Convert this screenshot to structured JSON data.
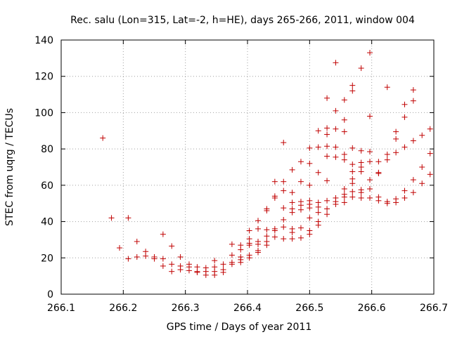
{
  "chart_data": {
    "type": "scatter",
    "title": "Rec. salu (Lon=315, Lat=-2, h=HE), days 265-266, 2011, window 004",
    "xlabel": "GPS time / Days of year 2011",
    "ylabel": "STEC from uqrg / TECUs",
    "xlim": [
      266.1,
      266.7
    ],
    "ylim": [
      0,
      140
    ],
    "xticks": [
      "266.1",
      "266.2",
      "266.3",
      "266.4",
      "266.5",
      "266.6",
      "266.7"
    ],
    "yticks": [
      "0",
      "20",
      "40",
      "60",
      "80",
      "100",
      "120",
      "140"
    ],
    "grid": true,
    "marker": "+",
    "color": "#c00000",
    "series": [
      {
        "name": "STEC",
        "points": [
          [
            266.167,
            86
          ],
          [
            266.181,
            42
          ],
          [
            266.194,
            25.5
          ],
          [
            266.208,
            42
          ],
          [
            266.208,
            19.5
          ],
          [
            266.222,
            29
          ],
          [
            266.222,
            20.5
          ],
          [
            266.236,
            23.5
          ],
          [
            266.236,
            21
          ],
          [
            266.25,
            20.5
          ],
          [
            266.25,
            19.5
          ],
          [
            266.264,
            33
          ],
          [
            266.264,
            19.5
          ],
          [
            266.264,
            15.5
          ],
          [
            266.278,
            26.5
          ],
          [
            266.278,
            16.5
          ],
          [
            266.278,
            12.5
          ],
          [
            266.292,
            20.5
          ],
          [
            266.292,
            15.5
          ],
          [
            266.292,
            13.5
          ],
          [
            266.306,
            16.5
          ],
          [
            266.306,
            15
          ],
          [
            266.306,
            13
          ],
          [
            266.319,
            15
          ],
          [
            266.319,
            12.5
          ],
          [
            266.319,
            12
          ],
          [
            266.333,
            14.5
          ],
          [
            266.333,
            12.5
          ],
          [
            266.333,
            10.5
          ],
          [
            266.347,
            18.5
          ],
          [
            266.347,
            15
          ],
          [
            266.347,
            12.5
          ],
          [
            266.347,
            10.5
          ],
          [
            266.361,
            16.5
          ],
          [
            266.361,
            13.5
          ],
          [
            266.361,
            12
          ],
          [
            266.375,
            27.5
          ],
          [
            266.375,
            21.5
          ],
          [
            266.375,
            17.5
          ],
          [
            266.375,
            16.5
          ],
          [
            266.389,
            27
          ],
          [
            266.389,
            24.5
          ],
          [
            266.389,
            20.5
          ],
          [
            266.389,
            19
          ],
          [
            266.389,
            17.5
          ],
          [
            266.403,
            35
          ],
          [
            266.403,
            30.5
          ],
          [
            266.403,
            28
          ],
          [
            266.403,
            27
          ],
          [
            266.403,
            21.5
          ],
          [
            266.403,
            20
          ],
          [
            266.417,
            40.5
          ],
          [
            266.417,
            36
          ],
          [
            266.417,
            29
          ],
          [
            266.417,
            27.5
          ],
          [
            266.417,
            24
          ],
          [
            266.417,
            23
          ],
          [
            266.431,
            47
          ],
          [
            266.431,
            46
          ],
          [
            266.431,
            35.5
          ],
          [
            266.431,
            32
          ],
          [
            266.431,
            29
          ],
          [
            266.431,
            27
          ],
          [
            266.444,
            62
          ],
          [
            266.444,
            54
          ],
          [
            266.444,
            53
          ],
          [
            266.444,
            36
          ],
          [
            266.444,
            35
          ],
          [
            266.444,
            31.5
          ],
          [
            266.458,
            83.5
          ],
          [
            266.458,
            62
          ],
          [
            266.458,
            57
          ],
          [
            266.458,
            47.5
          ],
          [
            266.458,
            41
          ],
          [
            266.458,
            37
          ],
          [
            266.458,
            30.5
          ],
          [
            266.472,
            68.5
          ],
          [
            266.472,
            56
          ],
          [
            266.472,
            50.5
          ],
          [
            266.472,
            47
          ],
          [
            266.472,
            45
          ],
          [
            266.472,
            36
          ],
          [
            266.472,
            34
          ],
          [
            266.472,
            30.5
          ],
          [
            266.486,
            73
          ],
          [
            266.486,
            62
          ],
          [
            266.486,
            51
          ],
          [
            266.486,
            49
          ],
          [
            266.486,
            46.5
          ],
          [
            266.486,
            36.5
          ],
          [
            266.486,
            31
          ],
          [
            266.5,
            80.5
          ],
          [
            266.5,
            72
          ],
          [
            266.5,
            60
          ],
          [
            266.5,
            51.5
          ],
          [
            266.5,
            49.5
          ],
          [
            266.5,
            47.5
          ],
          [
            266.5,
            42
          ],
          [
            266.5,
            35
          ],
          [
            266.5,
            33
          ],
          [
            266.514,
            90
          ],
          [
            266.514,
            81
          ],
          [
            266.514,
            67
          ],
          [
            266.514,
            50.5
          ],
          [
            266.514,
            48
          ],
          [
            266.514,
            45
          ],
          [
            266.514,
            40
          ],
          [
            266.514,
            38
          ],
          [
            266.528,
            108
          ],
          [
            266.528,
            91.5
          ],
          [
            266.528,
            88
          ],
          [
            266.528,
            81.5
          ],
          [
            266.528,
            76
          ],
          [
            266.528,
            62.5
          ],
          [
            266.528,
            51.5
          ],
          [
            266.528,
            47
          ],
          [
            266.528,
            44
          ],
          [
            266.542,
            127.5
          ],
          [
            266.542,
            101
          ],
          [
            266.542,
            91
          ],
          [
            266.542,
            81
          ],
          [
            266.542,
            75.5
          ],
          [
            266.542,
            53
          ],
          [
            266.542,
            51
          ],
          [
            266.542,
            49.5
          ],
          [
            266.556,
            107
          ],
          [
            266.556,
            96
          ],
          [
            266.556,
            89.5
          ],
          [
            266.556,
            77
          ],
          [
            266.556,
            74
          ],
          [
            266.556,
            58
          ],
          [
            266.556,
            55
          ],
          [
            266.556,
            53.5
          ],
          [
            266.556,
            50.5
          ],
          [
            266.569,
            115
          ],
          [
            266.569,
            112
          ],
          [
            266.569,
            80.5
          ],
          [
            266.569,
            71.5
          ],
          [
            266.569,
            67.5
          ],
          [
            266.569,
            63.5
          ],
          [
            266.569,
            61
          ],
          [
            266.569,
            56.5
          ],
          [
            266.569,
            53.5
          ],
          [
            266.583,
            124.5
          ],
          [
            266.583,
            79
          ],
          [
            266.583,
            72.5
          ],
          [
            266.583,
            70
          ],
          [
            266.583,
            67.5
          ],
          [
            266.583,
            57.5
          ],
          [
            266.583,
            56
          ],
          [
            266.583,
            53
          ],
          [
            266.597,
            133
          ],
          [
            266.597,
            98
          ],
          [
            266.597,
            78.5
          ],
          [
            266.597,
            73
          ],
          [
            266.597,
            63
          ],
          [
            266.597,
            58
          ],
          [
            266.597,
            53
          ],
          [
            266.611,
            73
          ],
          [
            266.611,
            67
          ],
          [
            266.611,
            66.5
          ],
          [
            266.611,
            53.5
          ],
          [
            266.611,
            51.5
          ],
          [
            266.625,
            114
          ],
          [
            266.625,
            77
          ],
          [
            266.625,
            74
          ],
          [
            266.625,
            51
          ],
          [
            266.625,
            50
          ],
          [
            266.639,
            89.5
          ],
          [
            266.639,
            85.5
          ],
          [
            266.639,
            78
          ],
          [
            266.639,
            52.5
          ],
          [
            266.639,
            50.5
          ],
          [
            266.653,
            104.5
          ],
          [
            266.653,
            97.5
          ],
          [
            266.653,
            81
          ],
          [
            266.653,
            57
          ],
          [
            266.653,
            53
          ],
          [
            266.667,
            112.5
          ],
          [
            266.667,
            106.5
          ],
          [
            266.667,
            84.5
          ],
          [
            266.667,
            63
          ],
          [
            266.667,
            56
          ],
          [
            266.681,
            87.5
          ],
          [
            266.681,
            70
          ],
          [
            266.681,
            61
          ],
          [
            266.694,
            91
          ],
          [
            266.694,
            77.5
          ],
          [
            266.694,
            66
          ]
        ]
      }
    ]
  }
}
